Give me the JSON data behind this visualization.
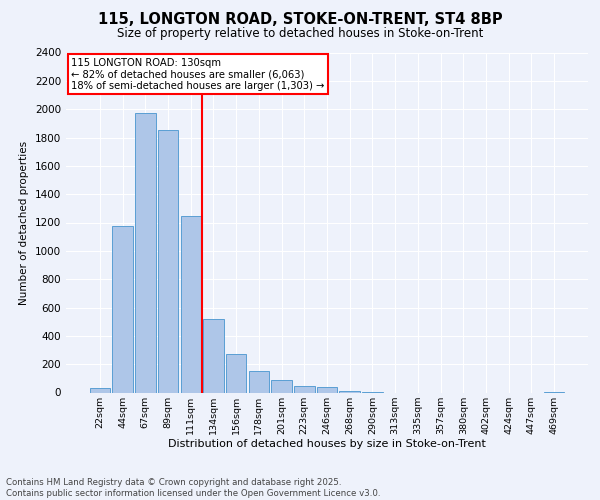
{
  "title1": "115, LONGTON ROAD, STOKE-ON-TRENT, ST4 8BP",
  "title2": "Size of property relative to detached houses in Stoke-on-Trent",
  "xlabel": "Distribution of detached houses by size in Stoke-on-Trent",
  "ylabel": "Number of detached properties",
  "bin_labels": [
    "22sqm",
    "44sqm",
    "67sqm",
    "89sqm",
    "111sqm",
    "134sqm",
    "156sqm",
    "178sqm",
    "201sqm",
    "223sqm",
    "246sqm",
    "268sqm",
    "290sqm",
    "313sqm",
    "335sqm",
    "357sqm",
    "380sqm",
    "402sqm",
    "424sqm",
    "447sqm",
    "469sqm"
  ],
  "bar_heights": [
    30,
    1175,
    1975,
    1855,
    1245,
    520,
    270,
    150,
    85,
    48,
    42,
    12,
    5,
    0,
    0,
    0,
    0,
    0,
    0,
    0,
    5
  ],
  "bar_color": "#aec6e8",
  "bar_edgecolor": "#5a9fd4",
  "vline_label": "115 LONGTON ROAD: 130sqm",
  "annotation_line1": "← 82% of detached houses are smaller (6,063)",
  "annotation_line2": "18% of semi-detached houses are larger (1,303) →",
  "ylim": [
    0,
    2400
  ],
  "yticks": [
    0,
    200,
    400,
    600,
    800,
    1000,
    1200,
    1400,
    1600,
    1800,
    2000,
    2200,
    2400
  ],
  "footer1": "Contains HM Land Registry data © Crown copyright and database right 2025.",
  "footer2": "Contains public sector information licensed under the Open Government Licence v3.0.",
  "bg_color": "#eef2fb"
}
